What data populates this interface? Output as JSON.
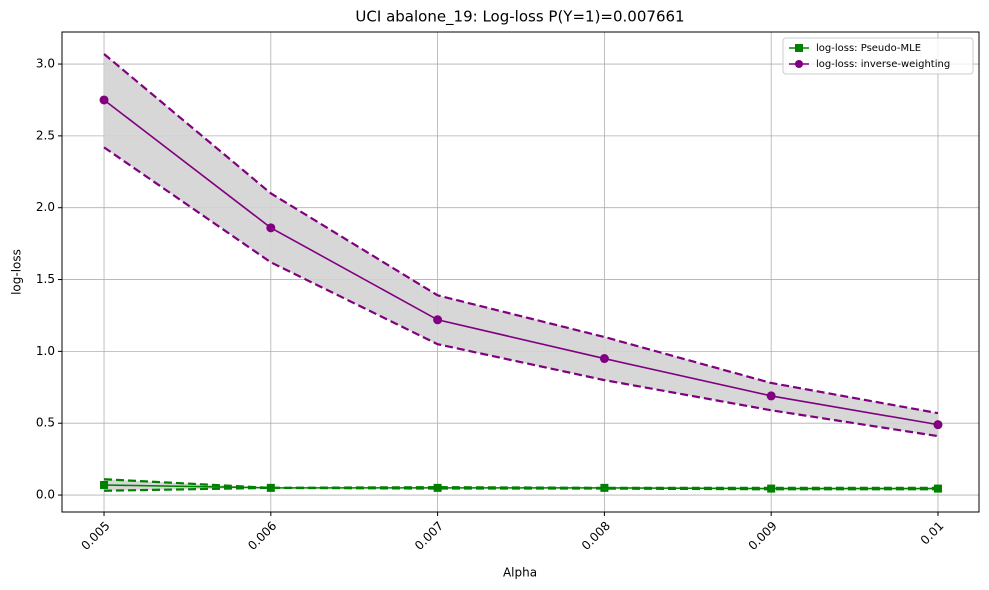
{
  "chart_data": {
    "type": "line",
    "title": "UCI abalone_19: Log-loss P(Y=1)=0.007661",
    "x_label": "Alpha",
    "y_label": "log-loss",
    "x": [
      0.005,
      0.006,
      0.007,
      0.008,
      0.009,
      0.01
    ],
    "series": [
      {
        "name": "log-loss: Pseudo-MLE",
        "color": "#008000",
        "marker": "square",
        "values": [
          0.07,
          0.05,
          0.05,
          0.05,
          0.045,
          0.045
        ],
        "upper": [
          0.11,
          0.05,
          0.055,
          0.05,
          0.05,
          0.05
        ],
        "lower": [
          0.03,
          0.05,
          0.045,
          0.045,
          0.04,
          0.04
        ]
      },
      {
        "name": "log-loss: inverse-weighting",
        "color": "#800080",
        "marker": "circle",
        "values": [
          2.75,
          1.86,
          1.22,
          0.95,
          0.69,
          0.49
        ],
        "upper": [
          3.07,
          2.1,
          1.39,
          1.1,
          0.78,
          0.57
        ],
        "lower": [
          2.42,
          1.62,
          1.05,
          0.8,
          0.59,
          0.41
        ]
      }
    ],
    "band_color": "#d3d3d3",
    "xlim": [
      0.004748,
      0.010246
    ],
    "ylim": [
      -0.118,
      3.223
    ],
    "xticks": [
      0.005,
      0.006,
      0.007,
      0.008,
      0.009,
      0.01
    ],
    "yticks": [
      {
        "value": 0,
        "label": "0.0"
      },
      0.5,
      {
        "value": 1,
        "label": "1.0"
      },
      1.5,
      {
        "value": 2,
        "label": "2.0"
      },
      2.5,
      {
        "value": 3,
        "label": "3.0"
      }
    ],
    "grid": true,
    "legend": "upper right"
  }
}
